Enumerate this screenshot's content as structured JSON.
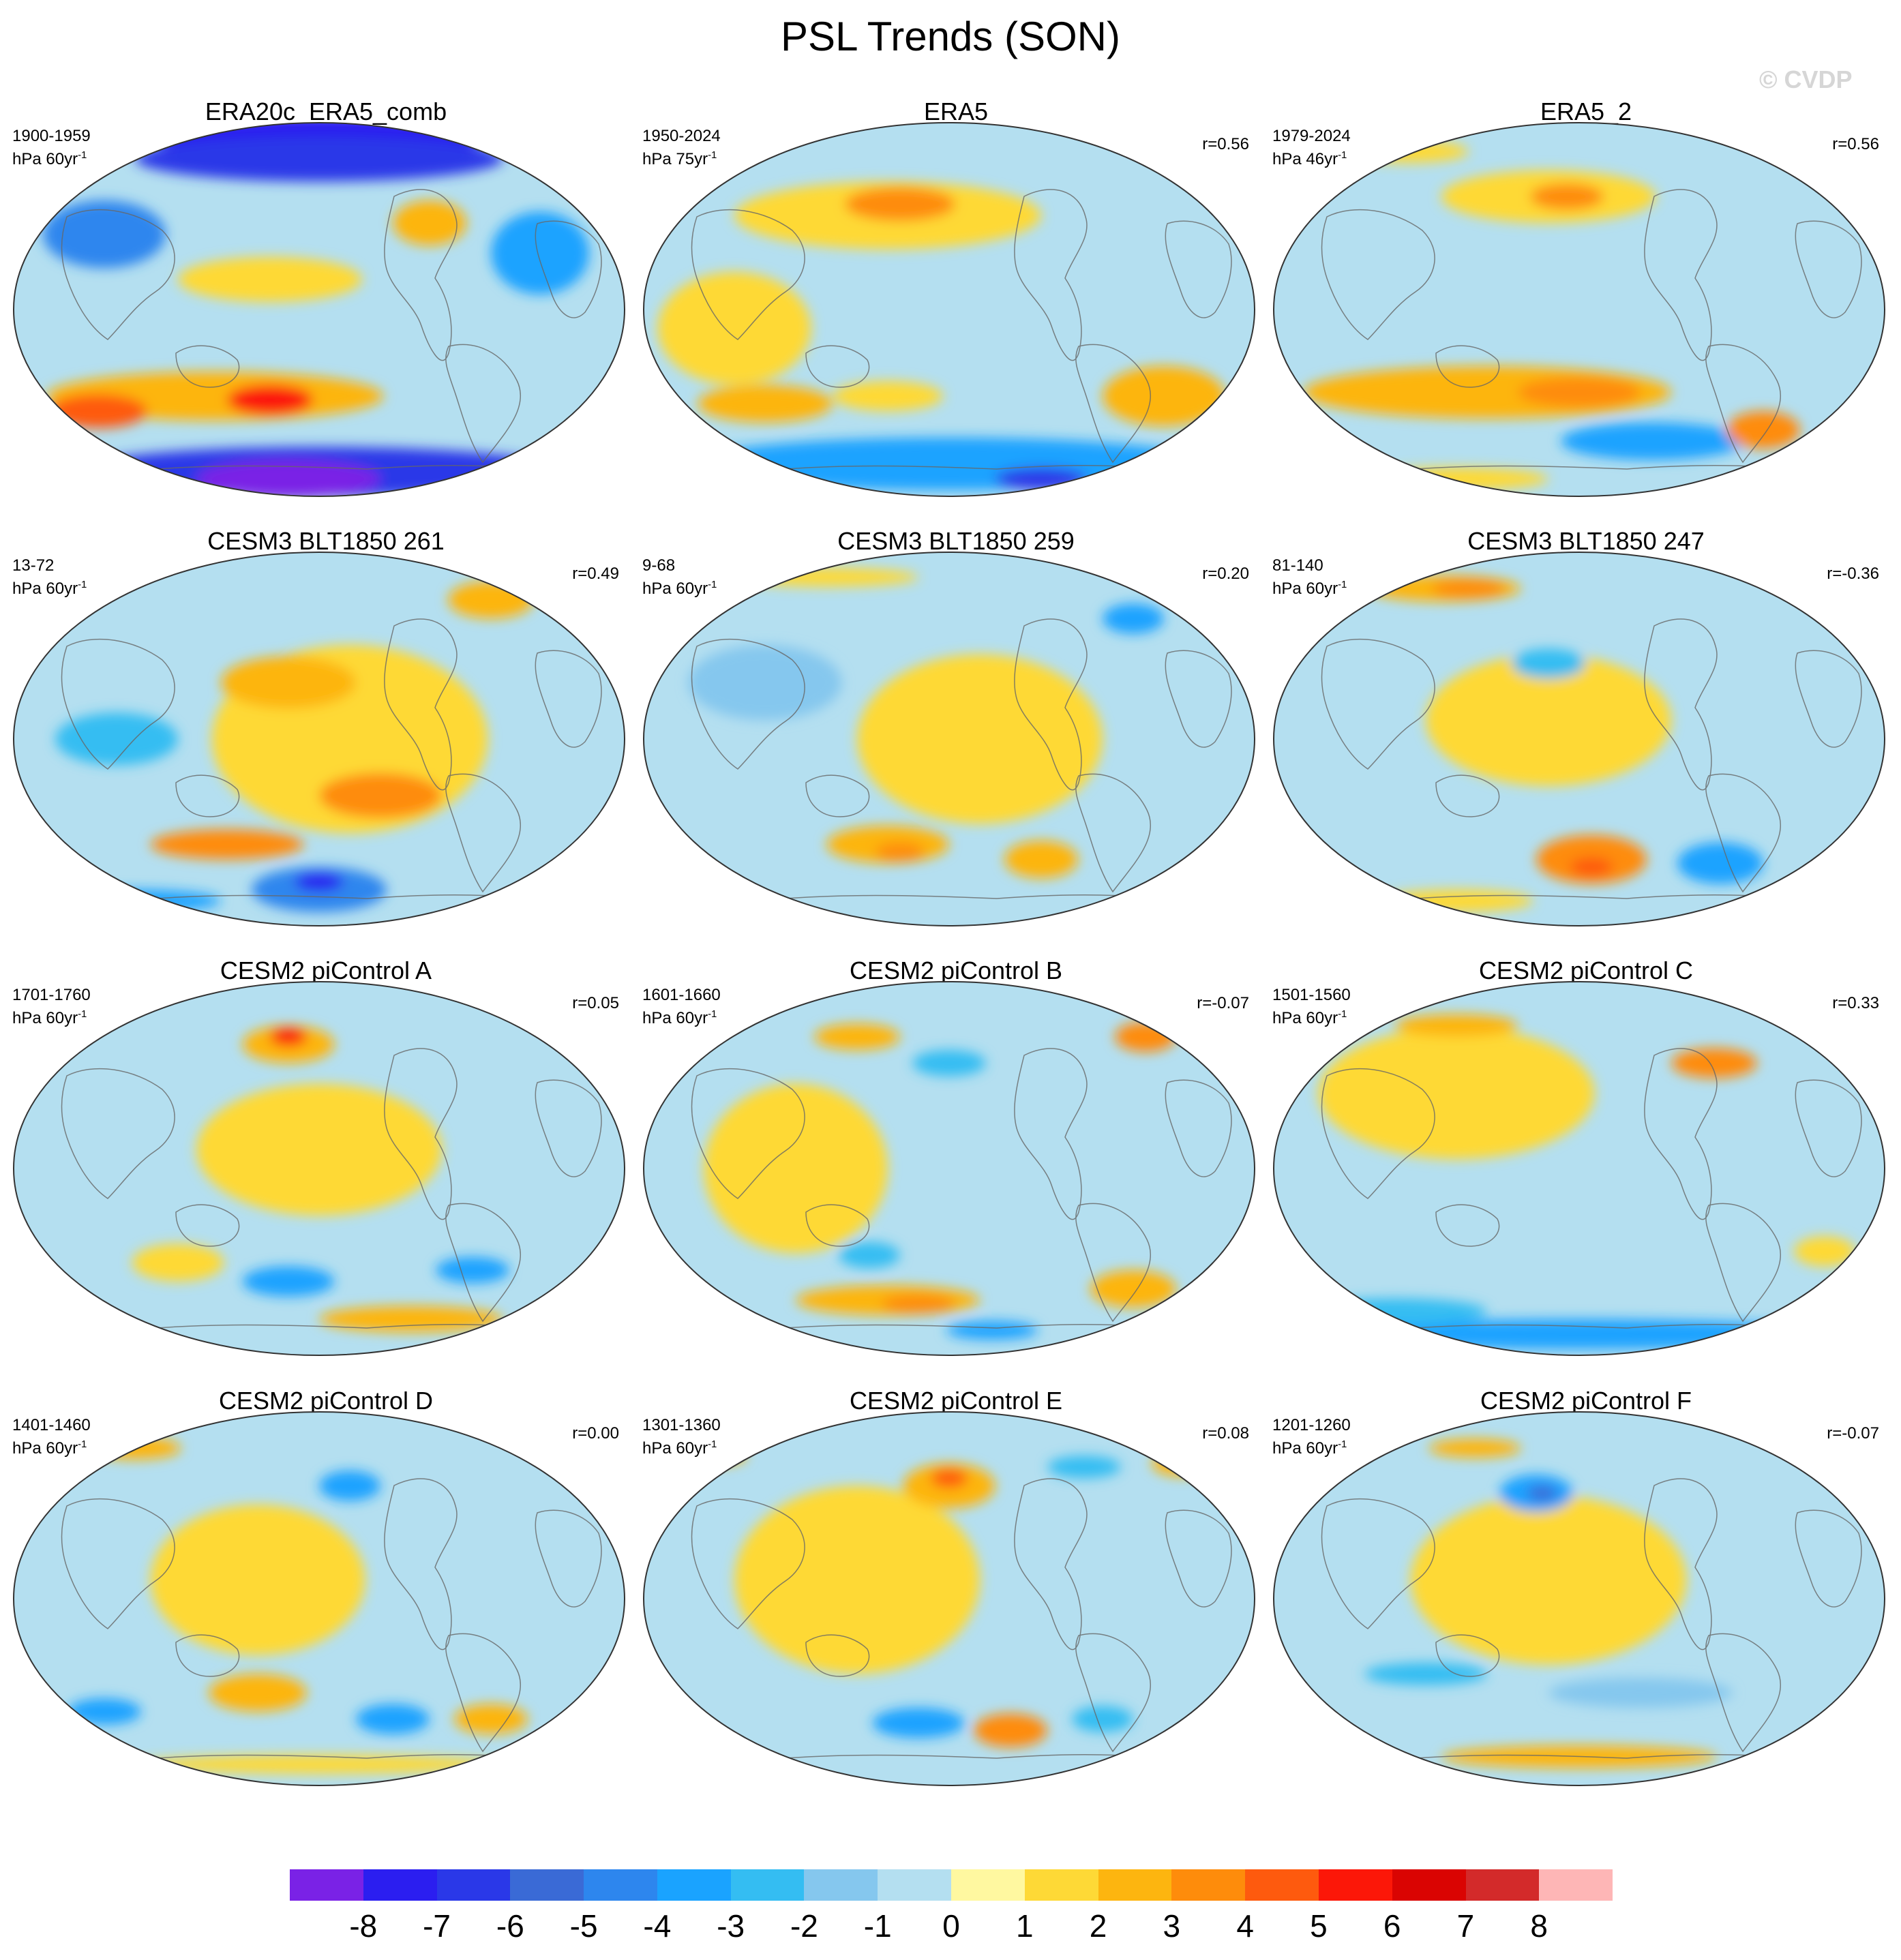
{
  "title": "PSL Trends (SON)",
  "watermark": "© CVDP",
  "panels": [
    {
      "title": "ERA20c_ERA5_comb",
      "years": "1900-1959",
      "units_prefix": "hPa 60yr",
      "units_exp": "-1",
      "corr": "",
      "blobs": [
        [
          "-7",
          0.5,
          0.04,
          0.55,
          0.11
        ],
        [
          "-6",
          0.5,
          0.1,
          0.6,
          0.12
        ],
        [
          "-4",
          0.15,
          0.3,
          0.2,
          0.18
        ],
        [
          "-3",
          0.86,
          0.35,
          0.16,
          0.22
        ],
        [
          "1",
          0.42,
          0.42,
          0.3,
          0.12
        ],
        [
          "2",
          0.68,
          0.27,
          0.12,
          0.12
        ],
        [
          "2",
          0.33,
          0.73,
          0.55,
          0.13
        ],
        [
          "4",
          0.14,
          0.77,
          0.16,
          0.09
        ],
        [
          "5",
          0.42,
          0.74,
          0.14,
          0.08
        ],
        [
          "-6",
          0.5,
          0.93,
          0.8,
          0.13
        ],
        [
          "-8",
          0.45,
          0.95,
          0.3,
          0.1
        ]
      ]
    },
    {
      "title": "ERA5",
      "years": "1950-2024",
      "units_prefix": "hPa 75yr",
      "units_exp": "-1",
      "corr": "r=0.56",
      "blobs": [
        [
          "1",
          0.4,
          0.25,
          0.5,
          0.18
        ],
        [
          "3",
          0.42,
          0.22,
          0.18,
          0.09
        ],
        [
          "1",
          0.15,
          0.55,
          0.25,
          0.3
        ],
        [
          "2",
          0.2,
          0.75,
          0.22,
          0.1
        ],
        [
          "1",
          0.4,
          0.73,
          0.18,
          0.08
        ],
        [
          "2",
          0.85,
          0.73,
          0.2,
          0.16
        ],
        [
          "-3",
          0.5,
          0.91,
          0.85,
          0.14
        ],
        [
          "-6",
          0.65,
          0.95,
          0.15,
          0.06
        ]
      ]
    },
    {
      "title": "ERA5_2",
      "years": "1979-2024",
      "units_prefix": "hPa 46yr",
      "units_exp": "-1",
      "corr": "r=0.56",
      "blobs": [
        [
          "1",
          0.45,
          0.2,
          0.35,
          0.14
        ],
        [
          "3",
          0.48,
          0.2,
          0.12,
          0.07
        ],
        [
          "1",
          0.22,
          0.08,
          0.2,
          0.06
        ],
        [
          "2",
          0.35,
          0.72,
          0.6,
          0.14
        ],
        [
          "3",
          0.5,
          0.72,
          0.2,
          0.08
        ],
        [
          "-3",
          0.62,
          0.85,
          0.3,
          0.1
        ],
        [
          "3",
          0.8,
          0.82,
          0.12,
          0.1
        ],
        [
          "1",
          0.3,
          0.95,
          0.3,
          0.06
        ]
      ]
    },
    {
      "title": "CESM3 BLT1850 261",
      "years": "13-72",
      "units_prefix": "hPa 60yr",
      "units_exp": "-1",
      "corr": "r=0.49",
      "blobs": [
        [
          "1",
          0.55,
          0.5,
          0.45,
          0.5
        ],
        [
          "2",
          0.45,
          0.35,
          0.22,
          0.14
        ],
        [
          "3",
          0.6,
          0.65,
          0.2,
          0.12
        ],
        [
          "3",
          0.35,
          0.78,
          0.25,
          0.08
        ],
        [
          "-2",
          0.17,
          0.5,
          0.2,
          0.14
        ],
        [
          "-4",
          0.5,
          0.9,
          0.22,
          0.12
        ],
        [
          "-7",
          0.5,
          0.88,
          0.08,
          0.05
        ],
        [
          "-3",
          0.2,
          0.93,
          0.28,
          0.06
        ],
        [
          "2",
          0.78,
          0.13,
          0.14,
          0.1
        ]
      ]
    },
    {
      "title": "CESM3 BLT1850 259",
      "years": "9-68",
      "units_prefix": "hPa 60yr",
      "units_exp": "-1",
      "corr": "r=0.20",
      "blobs": [
        [
          "1",
          0.55,
          0.5,
          0.4,
          0.45
        ],
        [
          "2",
          0.4,
          0.78,
          0.2,
          0.1
        ],
        [
          "3",
          0.42,
          0.8,
          0.08,
          0.05
        ],
        [
          "2",
          0.65,
          0.82,
          0.12,
          0.1
        ],
        [
          "-3",
          0.8,
          0.18,
          0.1,
          0.08
        ],
        [
          "-1",
          0.2,
          0.35,
          0.25,
          0.2
        ],
        [
          "1",
          0.3,
          0.07,
          0.3,
          0.05
        ]
      ]
    },
    {
      "title": "CESM3 BLT1850 247",
      "years": "81-140",
      "units_prefix": "hPa 60yr",
      "units_exp": "-1",
      "corr": "r=-0.36",
      "blobs": [
        [
          "1",
          0.45,
          0.45,
          0.4,
          0.35
        ],
        [
          "2",
          0.28,
          0.1,
          0.25,
          0.07
        ],
        [
          "3",
          0.32,
          0.1,
          0.12,
          0.05
        ],
        [
          "3",
          0.52,
          0.82,
          0.18,
          0.13
        ],
        [
          "4",
          0.52,
          0.84,
          0.07,
          0.05
        ],
        [
          "-3",
          0.73,
          0.83,
          0.14,
          0.11
        ],
        [
          "-2",
          0.45,
          0.3,
          0.12,
          0.08
        ],
        [
          "1",
          0.3,
          0.93,
          0.25,
          0.06
        ]
      ]
    },
    {
      "title": "CESM2 piControl A",
      "years": "1701-1760",
      "units_prefix": "hPa 60yr",
      "units_exp": "-1",
      "corr": "r=0.05",
      "blobs": [
        [
          "1",
          0.5,
          0.45,
          0.4,
          0.35
        ],
        [
          "2",
          0.45,
          0.17,
          0.15,
          0.1
        ],
        [
          "5",
          0.45,
          0.15,
          0.06,
          0.05
        ],
        [
          "-3",
          0.45,
          0.8,
          0.15,
          0.08
        ],
        [
          "-3",
          0.75,
          0.77,
          0.12,
          0.07
        ],
        [
          "2",
          0.65,
          0.9,
          0.3,
          0.07
        ],
        [
          "1",
          0.27,
          0.75,
          0.15,
          0.1
        ]
      ]
    },
    {
      "title": "CESM2 piControl B",
      "years": "1601-1660",
      "units_prefix": "hPa 60yr",
      "units_exp": "-1",
      "corr": "r=-0.07",
      "blobs": [
        [
          "1",
          0.25,
          0.5,
          0.3,
          0.45
        ],
        [
          "2",
          0.4,
          0.85,
          0.3,
          0.08
        ],
        [
          "3",
          0.45,
          0.86,
          0.12,
          0.05
        ],
        [
          "2",
          0.8,
          0.82,
          0.14,
          0.1
        ],
        [
          "2",
          0.35,
          0.15,
          0.14,
          0.07
        ],
        [
          "3",
          0.82,
          0.15,
          0.1,
          0.08
        ],
        [
          "-2",
          0.5,
          0.22,
          0.12,
          0.07
        ],
        [
          "-3",
          0.57,
          0.93,
          0.15,
          0.05
        ],
        [
          "-2",
          0.37,
          0.73,
          0.1,
          0.07
        ]
      ]
    },
    {
      "title": "CESM2 piControl C",
      "years": "1501-1560",
      "units_prefix": "hPa 60yr",
      "units_exp": "-1",
      "corr": "r=0.33",
      "blobs": [
        [
          "1",
          0.3,
          0.3,
          0.45,
          0.35
        ],
        [
          "2",
          0.3,
          0.12,
          0.2,
          0.06
        ],
        [
          "3",
          0.72,
          0.22,
          0.14,
          0.08
        ],
        [
          "-3",
          0.5,
          0.94,
          0.85,
          0.08
        ],
        [
          "-2",
          0.2,
          0.88,
          0.3,
          0.07
        ],
        [
          "1",
          0.9,
          0.72,
          0.1,
          0.08
        ]
      ]
    },
    {
      "title": "CESM2 piControl D",
      "years": "1401-1460",
      "units_prefix": "hPa 60yr",
      "units_exp": "-1",
      "corr": "r=0.00",
      "blobs": [
        [
          "1",
          0.4,
          0.45,
          0.35,
          0.4
        ],
        [
          "2",
          0.2,
          0.1,
          0.15,
          0.06
        ],
        [
          "-3",
          0.55,
          0.2,
          0.1,
          0.08
        ],
        [
          "-3",
          0.15,
          0.8,
          0.12,
          0.07
        ],
        [
          "-3",
          0.62,
          0.82,
          0.12,
          0.08
        ],
        [
          "2",
          0.78,
          0.82,
          0.12,
          0.08
        ],
        [
          "2",
          0.4,
          0.75,
          0.16,
          0.1
        ],
        [
          "1",
          0.5,
          0.94,
          0.6,
          0.05
        ]
      ]
    },
    {
      "title": "CESM2 piControl E",
      "years": "1301-1360",
      "units_prefix": "hPa 60yr",
      "units_exp": "-1",
      "corr": "r=0.08",
      "blobs": [
        [
          "1",
          0.35,
          0.45,
          0.4,
          0.5
        ],
        [
          "2",
          0.5,
          0.2,
          0.15,
          0.12
        ],
        [
          "4",
          0.5,
          0.18,
          0.06,
          0.05
        ],
        [
          "-2",
          0.72,
          0.15,
          0.12,
          0.06
        ],
        [
          "2",
          0.88,
          0.14,
          0.1,
          0.07
        ],
        [
          "-3",
          0.45,
          0.83,
          0.15,
          0.08
        ],
        [
          "3",
          0.6,
          0.85,
          0.12,
          0.09
        ],
        [
          "-2",
          0.75,
          0.82,
          0.1,
          0.07
        ],
        [
          "2",
          0.12,
          0.12,
          0.1,
          0.05
        ]
      ]
    },
    {
      "title": "CESM2 piControl F",
      "years": "1201-1260",
      "units_prefix": "hPa 60yr",
      "units_exp": "-1",
      "corr": "r=-0.07",
      "blobs": [
        [
          "1",
          0.45,
          0.45,
          0.45,
          0.45
        ],
        [
          "-3",
          0.43,
          0.22,
          0.12,
          0.1
        ],
        [
          "-5",
          0.44,
          0.22,
          0.05,
          0.04
        ],
        [
          "2",
          0.33,
          0.1,
          0.15,
          0.05
        ],
        [
          "-2",
          0.25,
          0.7,
          0.2,
          0.06
        ],
        [
          "-1",
          0.6,
          0.75,
          0.3,
          0.08
        ],
        [
          "2",
          0.5,
          0.92,
          0.45,
          0.06
        ]
      ]
    }
  ],
  "colorbar": {
    "labels": [
      "-8",
      "-7",
      "-6",
      "-5",
      "-4",
      "-3",
      "-2",
      "-1",
      "0",
      "1",
      "2",
      "3",
      "4",
      "5",
      "6",
      "7",
      "8"
    ],
    "colors": [
      "#7a22e6",
      "#2b1ef0",
      "#2a38e8",
      "#3a6ad6",
      "#2d86ee",
      "#1aa3ff",
      "#34bdf2",
      "#85c7ee",
      "#b4dff0",
      "#fff8a0",
      "#fed936",
      "#fdb50f",
      "#fe8c0b",
      "#fe5a0e",
      "#fc1708",
      "#da0402",
      "#d32a2a",
      "#feb6b6"
    ],
    "level_colors": {
      "-8": "#7a22e6",
      "-7": "#2b1ef0",
      "-6": "#2a38e8",
      "-5": "#3a6ad6",
      "-4": "#2d86ee",
      "-3": "#1aa3ff",
      "-2": "#34bdf2",
      "-1": "#85c7ee",
      "1": "#fed936",
      "2": "#fdb50f",
      "3": "#fe8c0b",
      "4": "#fe5a0e",
      "5": "#fc1708",
      "6": "#da0402",
      "7": "#d32a2a",
      "8": "#feb6b6"
    },
    "negative_base": "#b4dff0",
    "positive_base": "#fff8a0"
  }
}
